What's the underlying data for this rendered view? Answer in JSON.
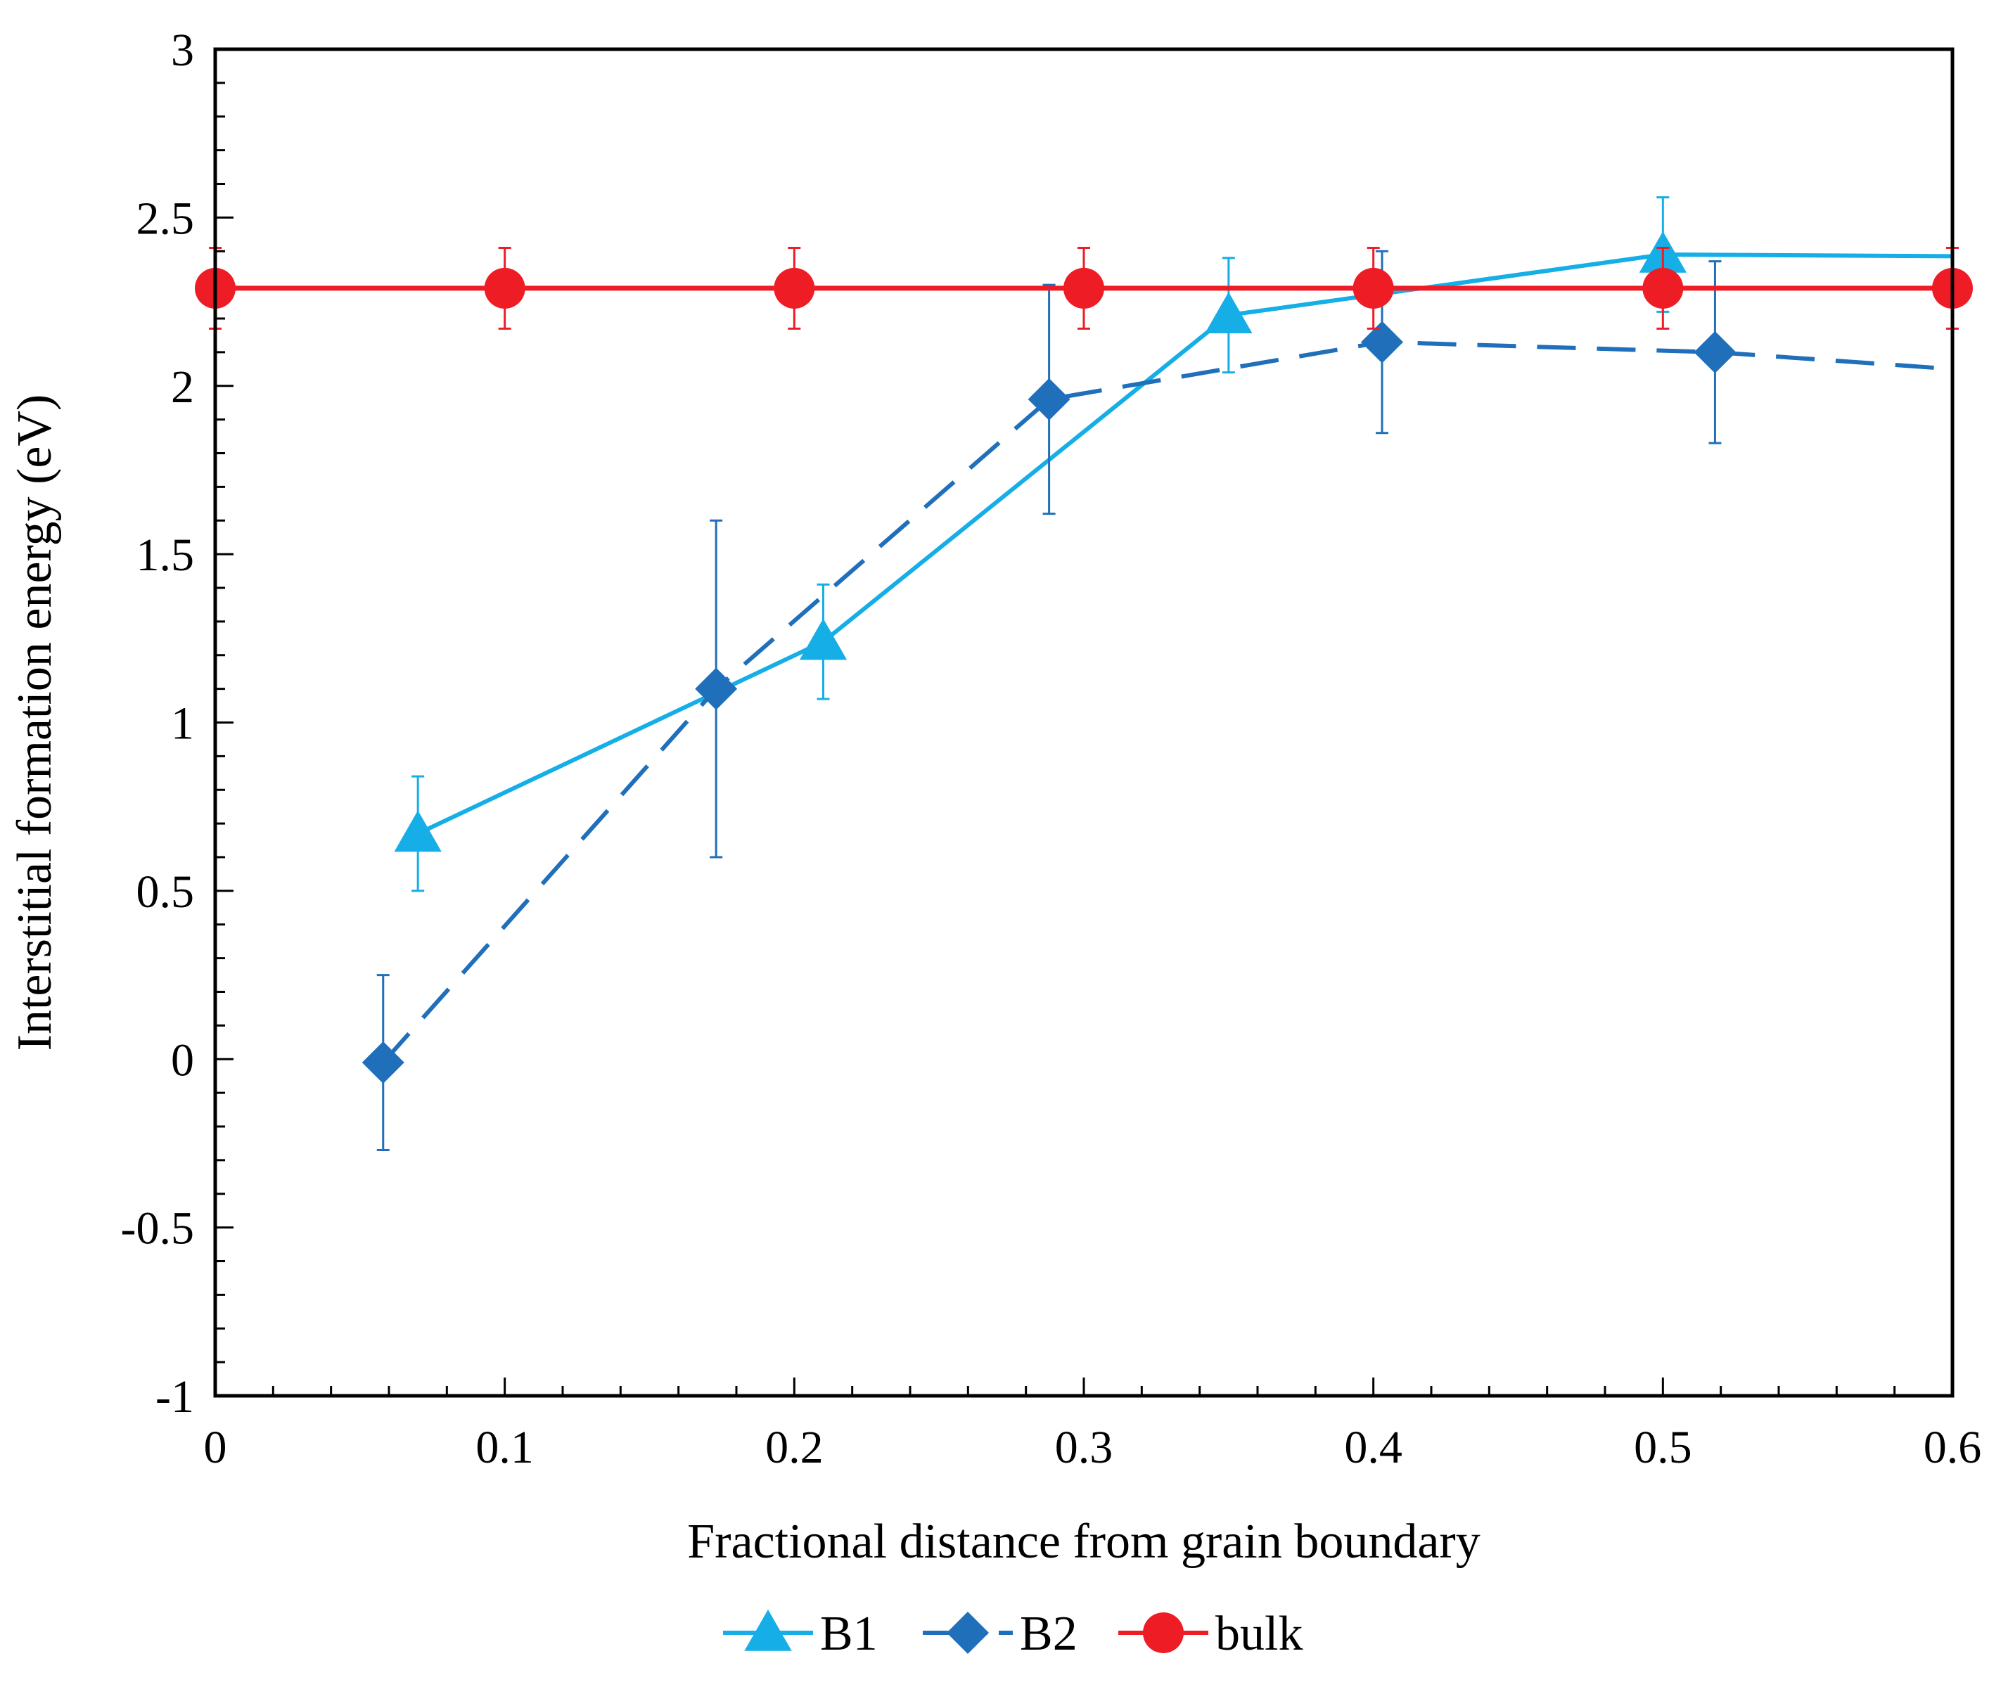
{
  "chart_data": {
    "type": "line",
    "title": "",
    "xlabel": "Fractional distance from grain boundary",
    "ylabel": "Interstitial formation energy (eV)",
    "xlim": [
      0,
      0.6
    ],
    "ylim": [
      -1,
      3
    ],
    "x_ticks": [
      "0",
      "0.1",
      "0.2",
      "0.3",
      "0.4",
      "0.5",
      "0.6"
    ],
    "y_ticks": [
      "-1",
      "-0.5",
      "0",
      "0.5",
      "1",
      "1.5",
      "2",
      "2.5",
      "3"
    ],
    "x_minor_step": 0.02,
    "y_minor_step": 0.1,
    "grid": false,
    "legend_position": "bottom-center",
    "series": [
      {
        "name": "B1",
        "color": "#15aee6",
        "marker": "triangle",
        "line_style": "solid",
        "points": [
          {
            "x": 0.07,
            "y": 0.67,
            "err_low": 0.17,
            "err_high": 0.17
          },
          {
            "x": 0.21,
            "y": 1.24,
            "err_low": 0.17,
            "err_high": 0.17
          },
          {
            "x": 0.35,
            "y": 2.21,
            "err_low": 0.17,
            "err_high": 0.17
          },
          {
            "x": 0.4,
            "y": 2.27,
            "err_low": null,
            "err_high": null
          },
          {
            "x": 0.5,
            "y": 2.39,
            "err_low": 0.17,
            "err_high": 0.17
          },
          {
            "x": 0.6,
            "y": 2.385,
            "err_low": null,
            "err_high": null
          }
        ],
        "marker_indices": [
          0,
          1,
          2,
          4
        ]
      },
      {
        "name": "B2",
        "color": "#1f6fba",
        "marker": "diamond",
        "line_style": "dashed",
        "points": [
          {
            "x": 0.058,
            "y": -0.01,
            "err_low": 0.26,
            "err_high": 0.26
          },
          {
            "x": 0.173,
            "y": 1.1,
            "err_low": 0.5,
            "err_high": 0.5
          },
          {
            "x": 0.288,
            "y": 1.96,
            "err_low": 0.34,
            "err_high": 0.34
          },
          {
            "x": 0.403,
            "y": 2.13,
            "err_low": 0.27,
            "err_high": 0.27
          },
          {
            "x": 0.518,
            "y": 2.1,
            "err_low": 0.27,
            "err_high": 0.27
          },
          {
            "x": 0.6,
            "y": 2.05,
            "err_low": null,
            "err_high": null
          }
        ],
        "marker_indices": [
          0,
          1,
          2,
          3,
          4
        ]
      },
      {
        "name": "bulk",
        "color": "#ee1c25",
        "marker": "circle",
        "line_style": "solid",
        "points": [
          {
            "x": 0.0,
            "y": 2.29,
            "err_low": 0.12,
            "err_high": 0.12
          },
          {
            "x": 0.1,
            "y": 2.29,
            "err_low": 0.12,
            "err_high": 0.12
          },
          {
            "x": 0.2,
            "y": 2.29,
            "err_low": 0.12,
            "err_high": 0.12
          },
          {
            "x": 0.3,
            "y": 2.29,
            "err_low": 0.12,
            "err_high": 0.12
          },
          {
            "x": 0.4,
            "y": 2.29,
            "err_low": 0.12,
            "err_high": 0.12
          },
          {
            "x": 0.5,
            "y": 2.29,
            "err_low": 0.12,
            "err_high": 0.12
          },
          {
            "x": 0.6,
            "y": 2.29,
            "err_low": 0.12,
            "err_high": 0.12
          }
        ],
        "marker_indices": [
          0,
          1,
          2,
          3,
          4,
          5,
          6
        ]
      }
    ]
  }
}
